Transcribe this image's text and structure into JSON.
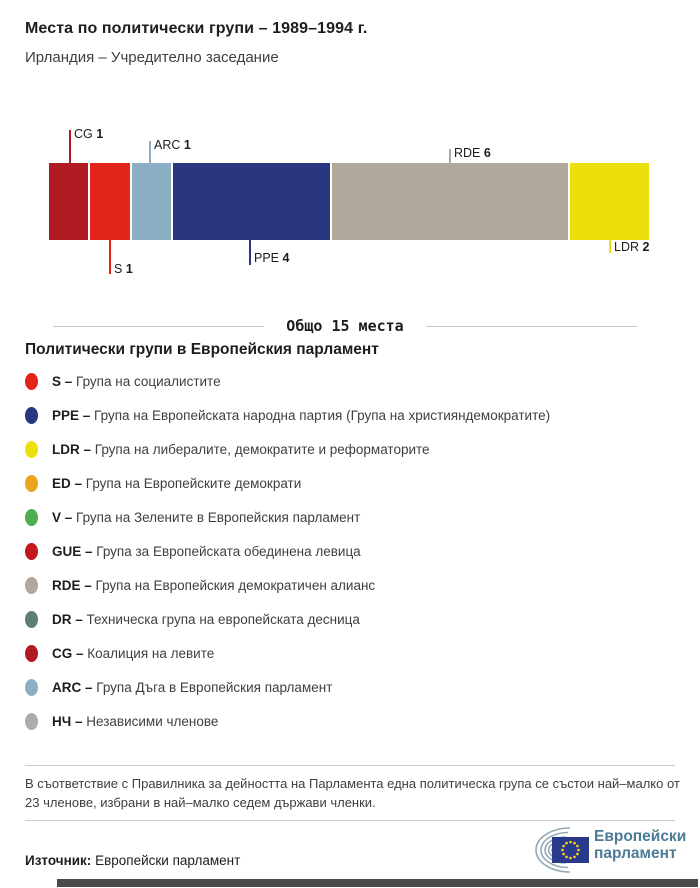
{
  "header": {
    "title": "Места по политически групи – 1989–1994 г.",
    "subtitle": "Ирландия – Учредително заседание"
  },
  "chart_data": {
    "type": "bar",
    "orientation": "horizontal-stacked",
    "title": "Места по политически групи – 1989–1994 г.",
    "subtitle": "Ирландия – Учредително заседание",
    "total_seats": 15,
    "total_label": "Общо 15 места",
    "categories": [
      "CG",
      "S",
      "ARC",
      "PPE",
      "RDE",
      "LDR"
    ],
    "values": [
      1,
      1,
      1,
      4,
      6,
      2
    ],
    "colors": [
      "#B01B21",
      "#E1251B",
      "#8DAFC5",
      "#2B3680",
      "#B1A89C",
      "#EBDF0C"
    ],
    "label_side": [
      "above",
      "below",
      "above",
      "below",
      "above",
      "below"
    ]
  },
  "legend": {
    "heading": "Политически групи в Европейския парламент",
    "items": [
      {
        "abbr": "S",
        "color": "#E1251B",
        "desc": "Група на социалистите"
      },
      {
        "abbr": "PPE",
        "color": "#2B3680",
        "desc": "Група на Европейската народна партия (Група на християндемократите)"
      },
      {
        "abbr": "LDR",
        "color": "#EBDF0C",
        "desc": "Група на либералите, демократите и реформаторите"
      },
      {
        "abbr": "ED",
        "color": "#EAA51F",
        "desc": "Група на Европейските демократи"
      },
      {
        "abbr": "V",
        "color": "#4DAE51",
        "desc": "Група на Зелените в Европейския парламент"
      },
      {
        "abbr": "GUE",
        "color": "#C3161E",
        "desc": "Група за Европейската обединена левица"
      },
      {
        "abbr": "RDE",
        "color": "#B1A89C",
        "desc": "Група на Европейския демократичен алианс"
      },
      {
        "abbr": "DR",
        "color": "#5E7E76",
        "desc": "Техническа група на европейската десница"
      },
      {
        "abbr": "CG",
        "color": "#B01B21",
        "desc": "Коалиция на левите"
      },
      {
        "abbr": "ARC",
        "color": "#8DAFC5",
        "desc": "Група Дъга в Европейския парламент"
      },
      {
        "abbr": "НЧ",
        "color": "#ACACAC",
        "desc": "Независими членове"
      }
    ]
  },
  "footer": {
    "note": "В съответствие с Правилника за дейността на Парламента една политическа група се състои най–малко от 23 членове, избрани в най–малко седем държави членки.",
    "source_label": "Източник:",
    "source_value": "Европейски парламент",
    "logo_line1": "Европейски",
    "logo_line2": "парламент"
  }
}
